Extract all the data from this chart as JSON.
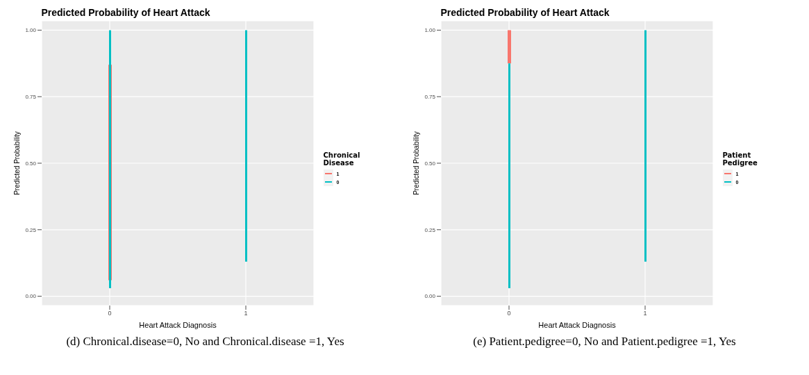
{
  "chart_data": [
    {
      "type": "bar",
      "title": "Predicted Probability of Heart Attack",
      "xlabel": "Heart Attack Diagnosis",
      "ylabel": "Predicted Probability",
      "legend_title": "Chronical Disease",
      "categories": [
        "0",
        "1"
      ],
      "ylim": [
        -0.035,
        1.035
      ],
      "yticks": [
        {
          "value": 0,
          "label": "0.00"
        },
        {
          "value": 0.25,
          "label": "0.25"
        },
        {
          "value": 0.5,
          "label": "0.50"
        },
        {
          "value": 0.75,
          "label": "0.75"
        },
        {
          "value": 1,
          "label": "1.00"
        }
      ],
      "grid": true,
      "legend": "right",
      "series": [
        {
          "name": "1",
          "color": "#f8766d",
          "base": [
            0.06,
            null
          ],
          "values": [
            0.81,
            null
          ]
        },
        {
          "name": "0",
          "color": "#00bfc4",
          "base": [
            0.03,
            0.13
          ],
          "values": [
            0.97,
            0.87
          ]
        }
      ],
      "annotations": [
        "(d) Chronical.disease=0, No and Chronical.disease =1, Yes"
      ]
    },
    {
      "type": "bar",
      "title": "Predicted Probability of Heart Attack",
      "xlabel": "Heart Attack Diagnosis",
      "ylabel": "Predicted Probability",
      "legend_title": "Patient Pedigree",
      "categories": [
        "0",
        "1"
      ],
      "ylim": [
        -0.035,
        1.035
      ],
      "yticks": [
        {
          "value": 0,
          "label": "0.00"
        },
        {
          "value": 0.25,
          "label": "0.25"
        },
        {
          "value": 0.5,
          "label": "0.50"
        },
        {
          "value": 0.75,
          "label": "0.75"
        },
        {
          "value": 1,
          "label": "1.00"
        }
      ],
      "grid": true,
      "legend": "right",
      "series": [
        {
          "name": "1",
          "color": "#f8766d",
          "base": [
            0.875,
            null
          ],
          "values": [
            0.125,
            null
          ]
        },
        {
          "name": "0",
          "color": "#00bfc4",
          "base": [
            0.03,
            0.13
          ],
          "values": [
            0.845,
            0.87
          ]
        }
      ],
      "annotations": [
        "(e) Patient.pedigree=0, No and Patient.pedigree =1, Yes"
      ]
    }
  ]
}
